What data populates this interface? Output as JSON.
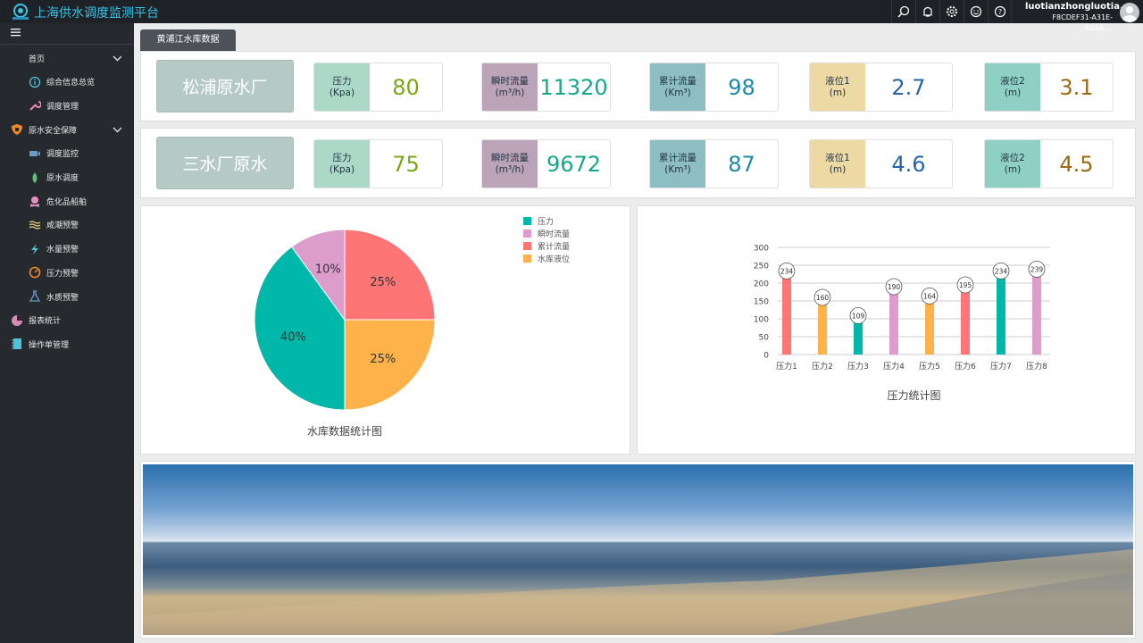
{
  "header": {
    "title": "上海供水调度监测平台",
    "user_name": "luotianzhongluotia...",
    "user_id": "F8CDEF31-A31E-4B4A-..."
  },
  "sidebar": {
    "items": [
      {
        "label": "首页",
        "icon": "home",
        "level": 0,
        "expanded": true
      },
      {
        "label": "综合信息总览",
        "icon": "info-icon",
        "level": 1
      },
      {
        "label": "调度管理",
        "icon": "wrench-icon",
        "level": 1
      },
      {
        "label": "原水安全保障",
        "icon": "shield-icon",
        "level": 0,
        "expanded": true
      },
      {
        "label": "调度监控",
        "icon": "camera-icon",
        "level": 1
      },
      {
        "label": "原水调度",
        "icon": "drop-icon",
        "level": 1
      },
      {
        "label": "危化品船舶",
        "icon": "skull-icon",
        "level": 1
      },
      {
        "label": "咸潮预警",
        "icon": "waves-icon",
        "level": 1
      },
      {
        "label": "水量预警",
        "icon": "bolt-icon",
        "level": 1
      },
      {
        "label": "压力预警",
        "icon": "gauge-icon",
        "level": 1
      },
      {
        "label": "水质预警",
        "icon": "flask-icon",
        "level": 1
      },
      {
        "label": "报表统计",
        "icon": "pie-icon",
        "level": 0
      },
      {
        "label": "操作单管理",
        "icon": "notebook-icon",
        "level": 0
      }
    ]
  },
  "tab": "黄浦江水库数据",
  "stations": [
    {
      "name": "松浦原水厂",
      "metrics": [
        {
          "l1": "压力",
          "l2": "(Kpa)",
          "value": "80"
        },
        {
          "l1": "瞬时流量",
          "l2": "(m³/h)",
          "value": "11320"
        },
        {
          "l1": "累计流量",
          "l2": "(Km³)",
          "value": "98"
        },
        {
          "l1": "液位1",
          "l2": "(m)",
          "value": "2.7"
        },
        {
          "l1": "液位2",
          "l2": "(m)",
          "value": "3.1"
        }
      ]
    },
    {
      "name": "三水厂原水",
      "metrics": [
        {
          "l1": "压力",
          "l2": "(Kpa)",
          "value": "75"
        },
        {
          "l1": "瞬时流量",
          "l2": "(m³/h)",
          "value": "9672"
        },
        {
          "l1": "累计流量",
          "l2": "(Km³)",
          "value": "87"
        },
        {
          "l1": "液位1",
          "l2": "(m)",
          "value": "4.6"
        },
        {
          "l1": "液位2",
          "l2": "(m)",
          "value": "4.5"
        }
      ]
    }
  ],
  "metric_colors": [
    {
      "bg": "#acd8c8",
      "fg": "#7aa814"
    },
    {
      "bg": "#bba3b8",
      "fg": "#13a88a"
    },
    {
      "bg": "#8dbfc2",
      "fg": "#1b8aa6"
    },
    {
      "bg": "#ecd9a4",
      "fg": "#2564a8"
    },
    {
      "bg": "#8fd0c4",
      "fg": "#9a6a12"
    }
  ],
  "chart_data": [
    {
      "type": "pie",
      "title": "水库数据统计图",
      "legend_position": "top-right",
      "categories": [
        "压力",
        "瞬时流量",
        "累计流量",
        "水库液位"
      ],
      "values": [
        40,
        10,
        25,
        25
      ],
      "labels": [
        "40%",
        "10%",
        "25%",
        "25%"
      ],
      "colors": [
        "#00b8a9",
        "#dc9ccc",
        "#ff7474",
        "#ffb24a"
      ]
    },
    {
      "type": "bar",
      "title": "压力统计图",
      "ylim": [
        0,
        300
      ],
      "yticks": [
        "0",
        "50",
        "100",
        "150",
        "200",
        "250",
        "300"
      ],
      "categories": [
        "压力1",
        "压力2",
        "压力3",
        "压力4",
        "压力5",
        "压力6",
        "压力7",
        "压力8"
      ],
      "values": [
        234,
        160,
        109,
        190,
        164,
        195,
        234,
        239
      ],
      "colors": [
        "#ff7474",
        "#ffb24a",
        "#00b8a9",
        "#dc9ccc",
        "#ffb24a",
        "#ff7474",
        "#00b8a9",
        "#dc9ccc"
      ],
      "grid": true
    }
  ]
}
